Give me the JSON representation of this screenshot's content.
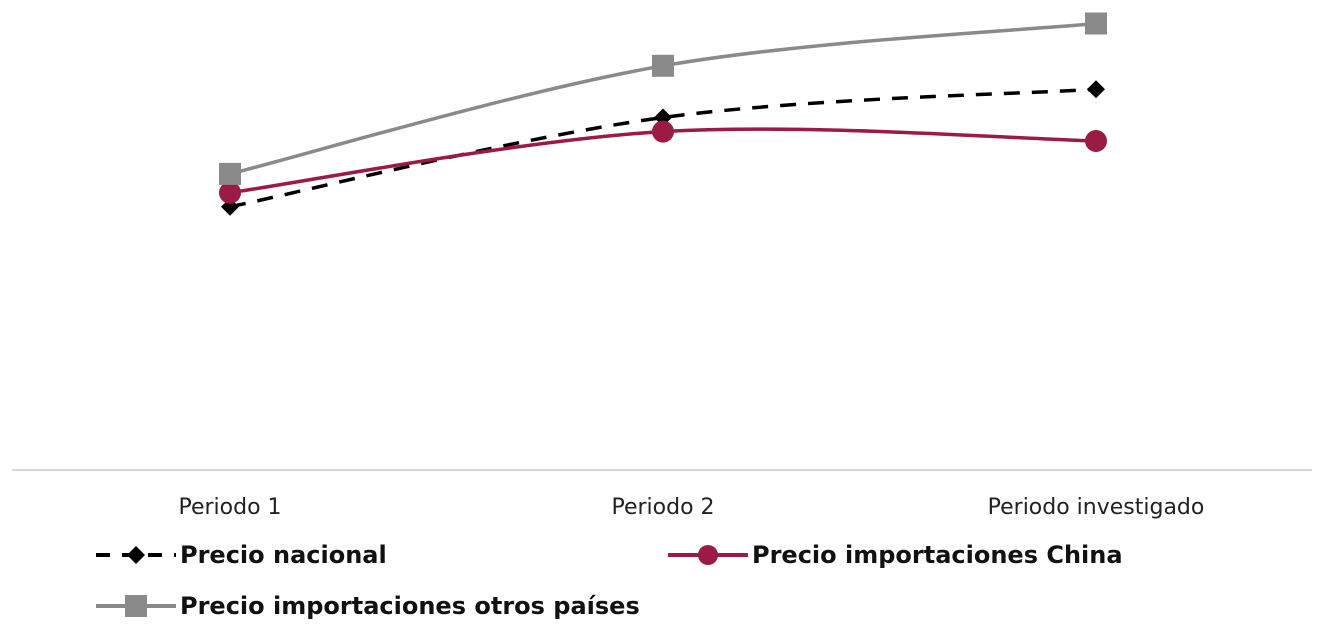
{
  "chart_data": {
    "type": "line",
    "categories": [
      "Periodo 1",
      "Periodo 2",
      "Periodo investigado"
    ],
    "series": [
      {
        "name": "Precio nacional",
        "values": [
          56,
          75,
          81
        ],
        "color": "#000000",
        "style": "dashed",
        "marker": "diamond"
      },
      {
        "name": "Precio importaciones China",
        "values": [
          59,
          72,
          70
        ],
        "color": "#9b1b45",
        "style": "solid",
        "marker": "circle"
      },
      {
        "name": "Precio importaciones otros países",
        "values": [
          63,
          86,
          95
        ],
        "color": "#8a8a8a",
        "style": "solid",
        "marker": "square"
      }
    ],
    "ylim": [
      0,
      100
    ],
    "grid": false,
    "legend_position": "bottom",
    "title": "",
    "xlabel": "",
    "ylabel": ""
  }
}
